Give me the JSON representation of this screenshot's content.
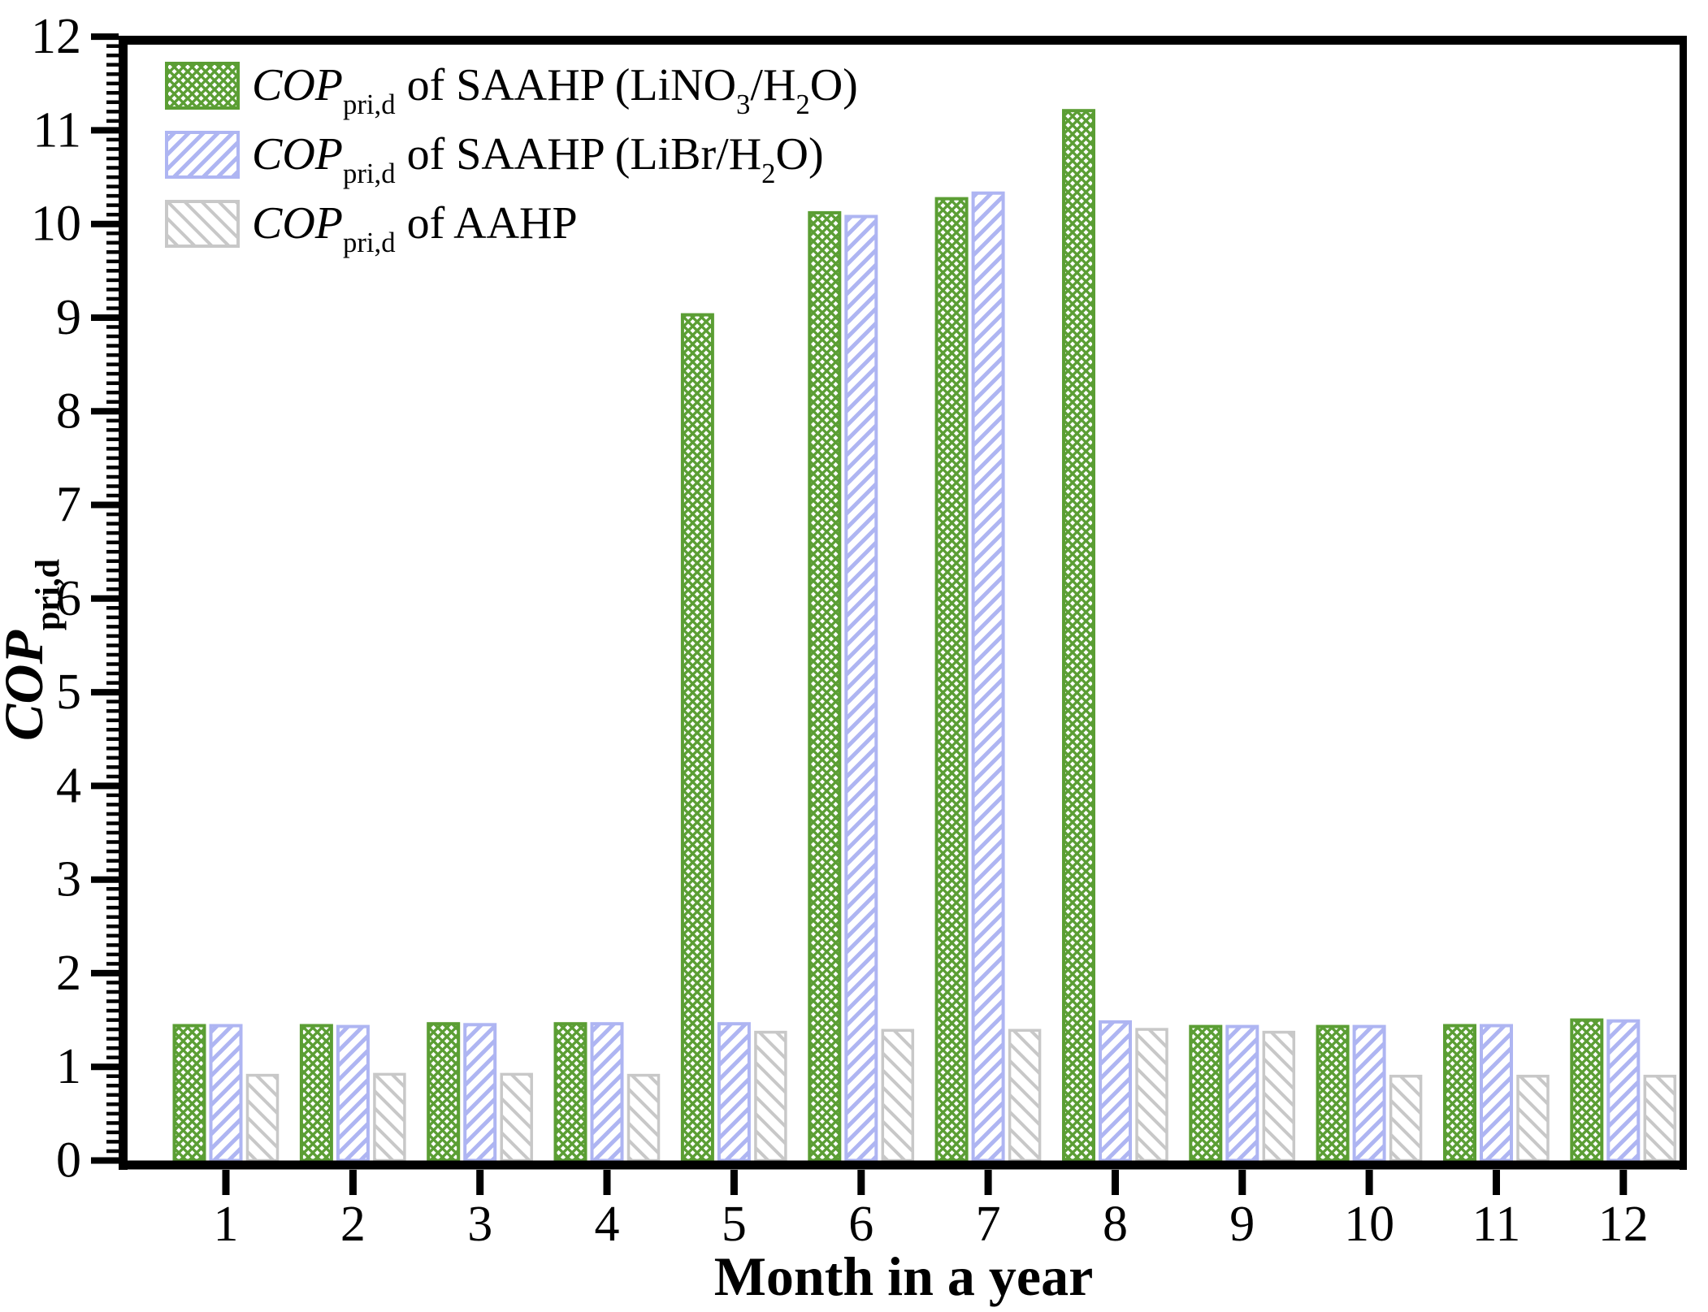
{
  "figure": {
    "background": "#ffffff",
    "frame_color": "#000000"
  },
  "chart_data": {
    "type": "bar",
    "title": "",
    "xlabel": "Month in a year",
    "ylabel": "*COP*{pri,d}",
    "categories": [
      "1",
      "2",
      "3",
      "4",
      "5",
      "6",
      "7",
      "8",
      "9",
      "10",
      "11",
      "12"
    ],
    "series": [
      {
        "name": "*COP*{pri,d} of SAAHP (LiNO{3}/H{2}O)",
        "color": "#5b9e34",
        "hatch": "cross",
        "values": [
          1.44,
          1.44,
          1.46,
          1.46,
          9.03,
          10.12,
          10.27,
          11.21,
          1.43,
          1.43,
          1.44,
          1.5
        ]
      },
      {
        "name": "*COP*{pri,d} of SAAHP (LiBr/H{2}O)",
        "color": "#aeb5f2",
        "hatch": "forward",
        "values": [
          1.44,
          1.43,
          1.45,
          1.46,
          1.46,
          10.08,
          10.33,
          1.48,
          1.43,
          1.43,
          1.44,
          1.49
        ]
      },
      {
        "name": "*COP*{pri,d} of AAHP",
        "color": "#c8c8c8",
        "hatch": "backward",
        "values": [
          0.91,
          0.92,
          0.92,
          0.91,
          1.37,
          1.39,
          1.39,
          1.4,
          1.37,
          0.9,
          0.9,
          0.9
        ]
      }
    ],
    "ylim": [
      0,
      12
    ],
    "y_major_step": 1,
    "y_minor_step": 0.1,
    "y_tick_labels": [
      "0",
      "1",
      "2",
      "3",
      "4",
      "5",
      "6",
      "7",
      "8",
      "9",
      "10",
      "11",
      "12"
    ],
    "grid": false,
    "legend_position": "top-left",
    "axis_text_color": "#000000"
  }
}
